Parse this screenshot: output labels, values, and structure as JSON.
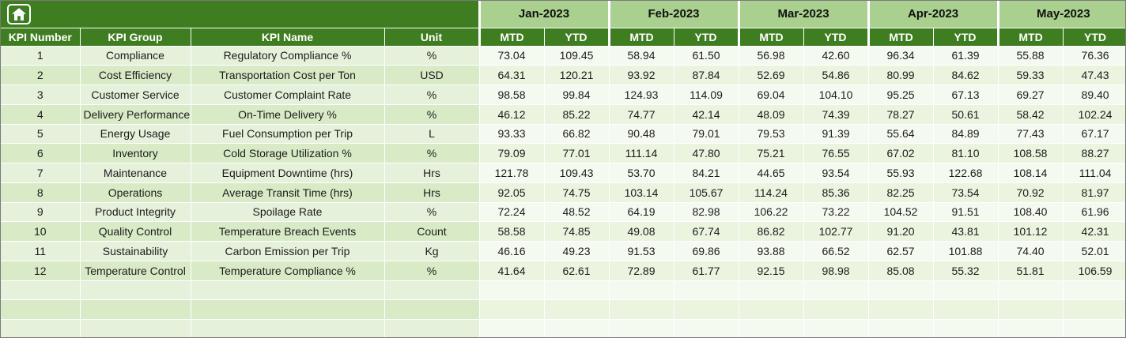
{
  "sheet": {
    "corner_icon": "home-icon"
  },
  "header": {
    "months": [
      "Jan-2023",
      "Feb-2023",
      "Mar-2023",
      "Apr-2023",
      "May-2023"
    ],
    "sub_columns": [
      "MTD",
      "YTD"
    ],
    "columns": [
      "KPI Number",
      "KPI Group",
      "KPI Name",
      "Unit"
    ]
  },
  "rows": [
    {
      "number": "1",
      "group": "Compliance",
      "name": "Regulatory Compliance %",
      "unit": "%",
      "values": [
        "73.04",
        "109.45",
        "58.94",
        "61.50",
        "56.98",
        "42.60",
        "96.34",
        "61.39",
        "55.88",
        "76.36"
      ]
    },
    {
      "number": "2",
      "group": "Cost Efficiency",
      "name": "Transportation Cost per Ton",
      "unit": "USD",
      "values": [
        "64.31",
        "120.21",
        "93.92",
        "87.84",
        "52.69",
        "54.86",
        "80.99",
        "84.62",
        "59.33",
        "47.43"
      ]
    },
    {
      "number": "3",
      "group": "Customer Service",
      "name": "Customer Complaint Rate",
      "unit": "%",
      "values": [
        "98.58",
        "99.84",
        "124.93",
        "114.09",
        "69.04",
        "104.10",
        "95.25",
        "67.13",
        "69.27",
        "89.40"
      ]
    },
    {
      "number": "4",
      "group": "Delivery Performance",
      "name": "On-Time Delivery %",
      "unit": "%",
      "values": [
        "46.12",
        "85.22",
        "74.77",
        "42.14",
        "48.09",
        "74.39",
        "78.27",
        "50.61",
        "58.42",
        "102.24"
      ]
    },
    {
      "number": "5",
      "group": "Energy Usage",
      "name": "Fuel Consumption per Trip",
      "unit": "L",
      "values": [
        "93.33",
        "66.82",
        "90.48",
        "79.01",
        "79.53",
        "91.39",
        "55.64",
        "84.89",
        "77.43",
        "67.17"
      ]
    },
    {
      "number": "6",
      "group": "Inventory",
      "name": "Cold Storage Utilization %",
      "unit": "%",
      "values": [
        "79.09",
        "77.01",
        "111.14",
        "47.80",
        "75.21",
        "76.55",
        "67.02",
        "81.10",
        "108.58",
        "88.27"
      ]
    },
    {
      "number": "7",
      "group": "Maintenance",
      "name": "Equipment Downtime (hrs)",
      "unit": "Hrs",
      "values": [
        "121.78",
        "109.43",
        "53.70",
        "84.21",
        "44.65",
        "93.54",
        "55.93",
        "122.68",
        "108.14",
        "111.04"
      ]
    },
    {
      "number": "8",
      "group": "Operations",
      "name": "Average Transit Time (hrs)",
      "unit": "Hrs",
      "values": [
        "92.05",
        "74.75",
        "103.14",
        "105.67",
        "114.24",
        "85.36",
        "82.25",
        "73.54",
        "70.92",
        "81.97"
      ]
    },
    {
      "number": "9",
      "group": "Product Integrity",
      "name": "Spoilage Rate",
      "unit": "%",
      "values": [
        "72.24",
        "48.52",
        "64.19",
        "82.98",
        "106.22",
        "73.22",
        "104.52",
        "91.51",
        "108.40",
        "61.96"
      ]
    },
    {
      "number": "10",
      "group": "Quality Control",
      "name": "Temperature Breach Events",
      "unit": "Count",
      "values": [
        "58.58",
        "74.85",
        "49.08",
        "67.74",
        "86.82",
        "102.77",
        "91.20",
        "43.81",
        "101.12",
        "42.31"
      ]
    },
    {
      "number": "11",
      "group": "Sustainability",
      "name": "Carbon Emission per Trip",
      "unit": "Kg",
      "values": [
        "46.16",
        "49.23",
        "91.53",
        "69.86",
        "93.88",
        "66.52",
        "62.57",
        "101.88",
        "74.40",
        "52.01"
      ]
    },
    {
      "number": "12",
      "group": "Temperature Control",
      "name": "Temperature Compliance %",
      "unit": "%",
      "values": [
        "41.64",
        "62.61",
        "72.89",
        "61.77",
        "92.15",
        "98.98",
        "85.08",
        "55.32",
        "51.81",
        "106.59"
      ]
    }
  ],
  "empty_row_count": 3,
  "colors": {
    "dark_green": "#3F7D21",
    "light_green": "#A9D08E",
    "odd_left": "#E6F1DB",
    "even_left": "#D9EAC7",
    "odd_val": "#F5FAF0",
    "even_val": "#EAF4DF",
    "body_text": "#1C1C1C",
    "header_text": "#FFFFFF"
  }
}
